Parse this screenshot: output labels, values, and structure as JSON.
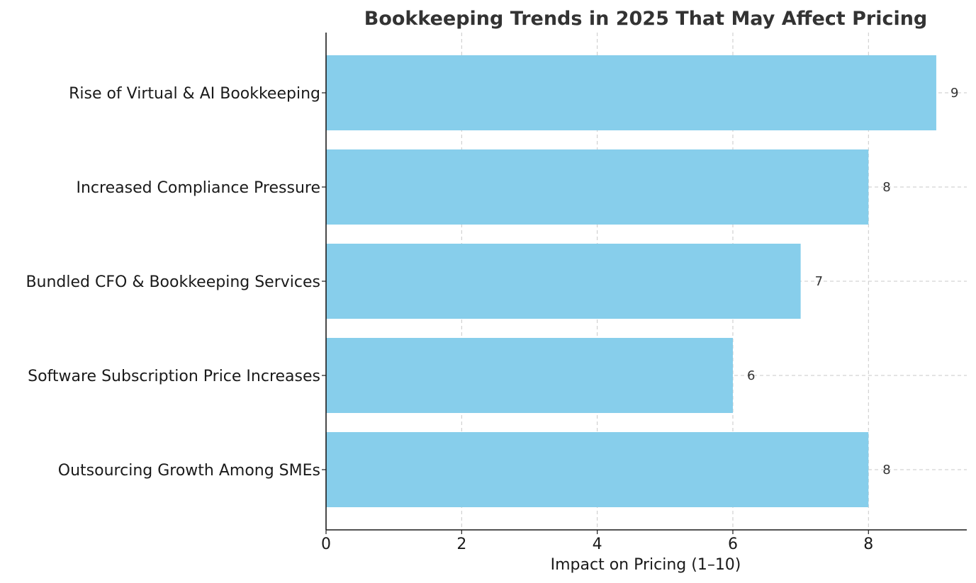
{
  "chart_data": {
    "type": "bar",
    "orientation": "horizontal",
    "title": "Bookkeeping Trends in 2025 That May Affect Pricing",
    "xlabel": "Impact on Pricing (1–10)",
    "ylabel": "",
    "categories": [
      "Rise of Virtual & AI Bookkeeping",
      "Increased Compliance Pressure",
      "Bundled CFO & Bookkeeping Services",
      "Software Subscription Price Increases",
      "Outsourcing Growth Among SMEs"
    ],
    "values": [
      9,
      8,
      7,
      6,
      8
    ],
    "xlim": [
      0,
      9.45
    ],
    "xticks": [
      0,
      2,
      4,
      6,
      8
    ],
    "grid": true,
    "data_labels": true,
    "colors": {
      "bar": "#87CEEB",
      "grid": "#c8c8c8",
      "axis": "#1a1a1a",
      "title": "#333333"
    }
  }
}
